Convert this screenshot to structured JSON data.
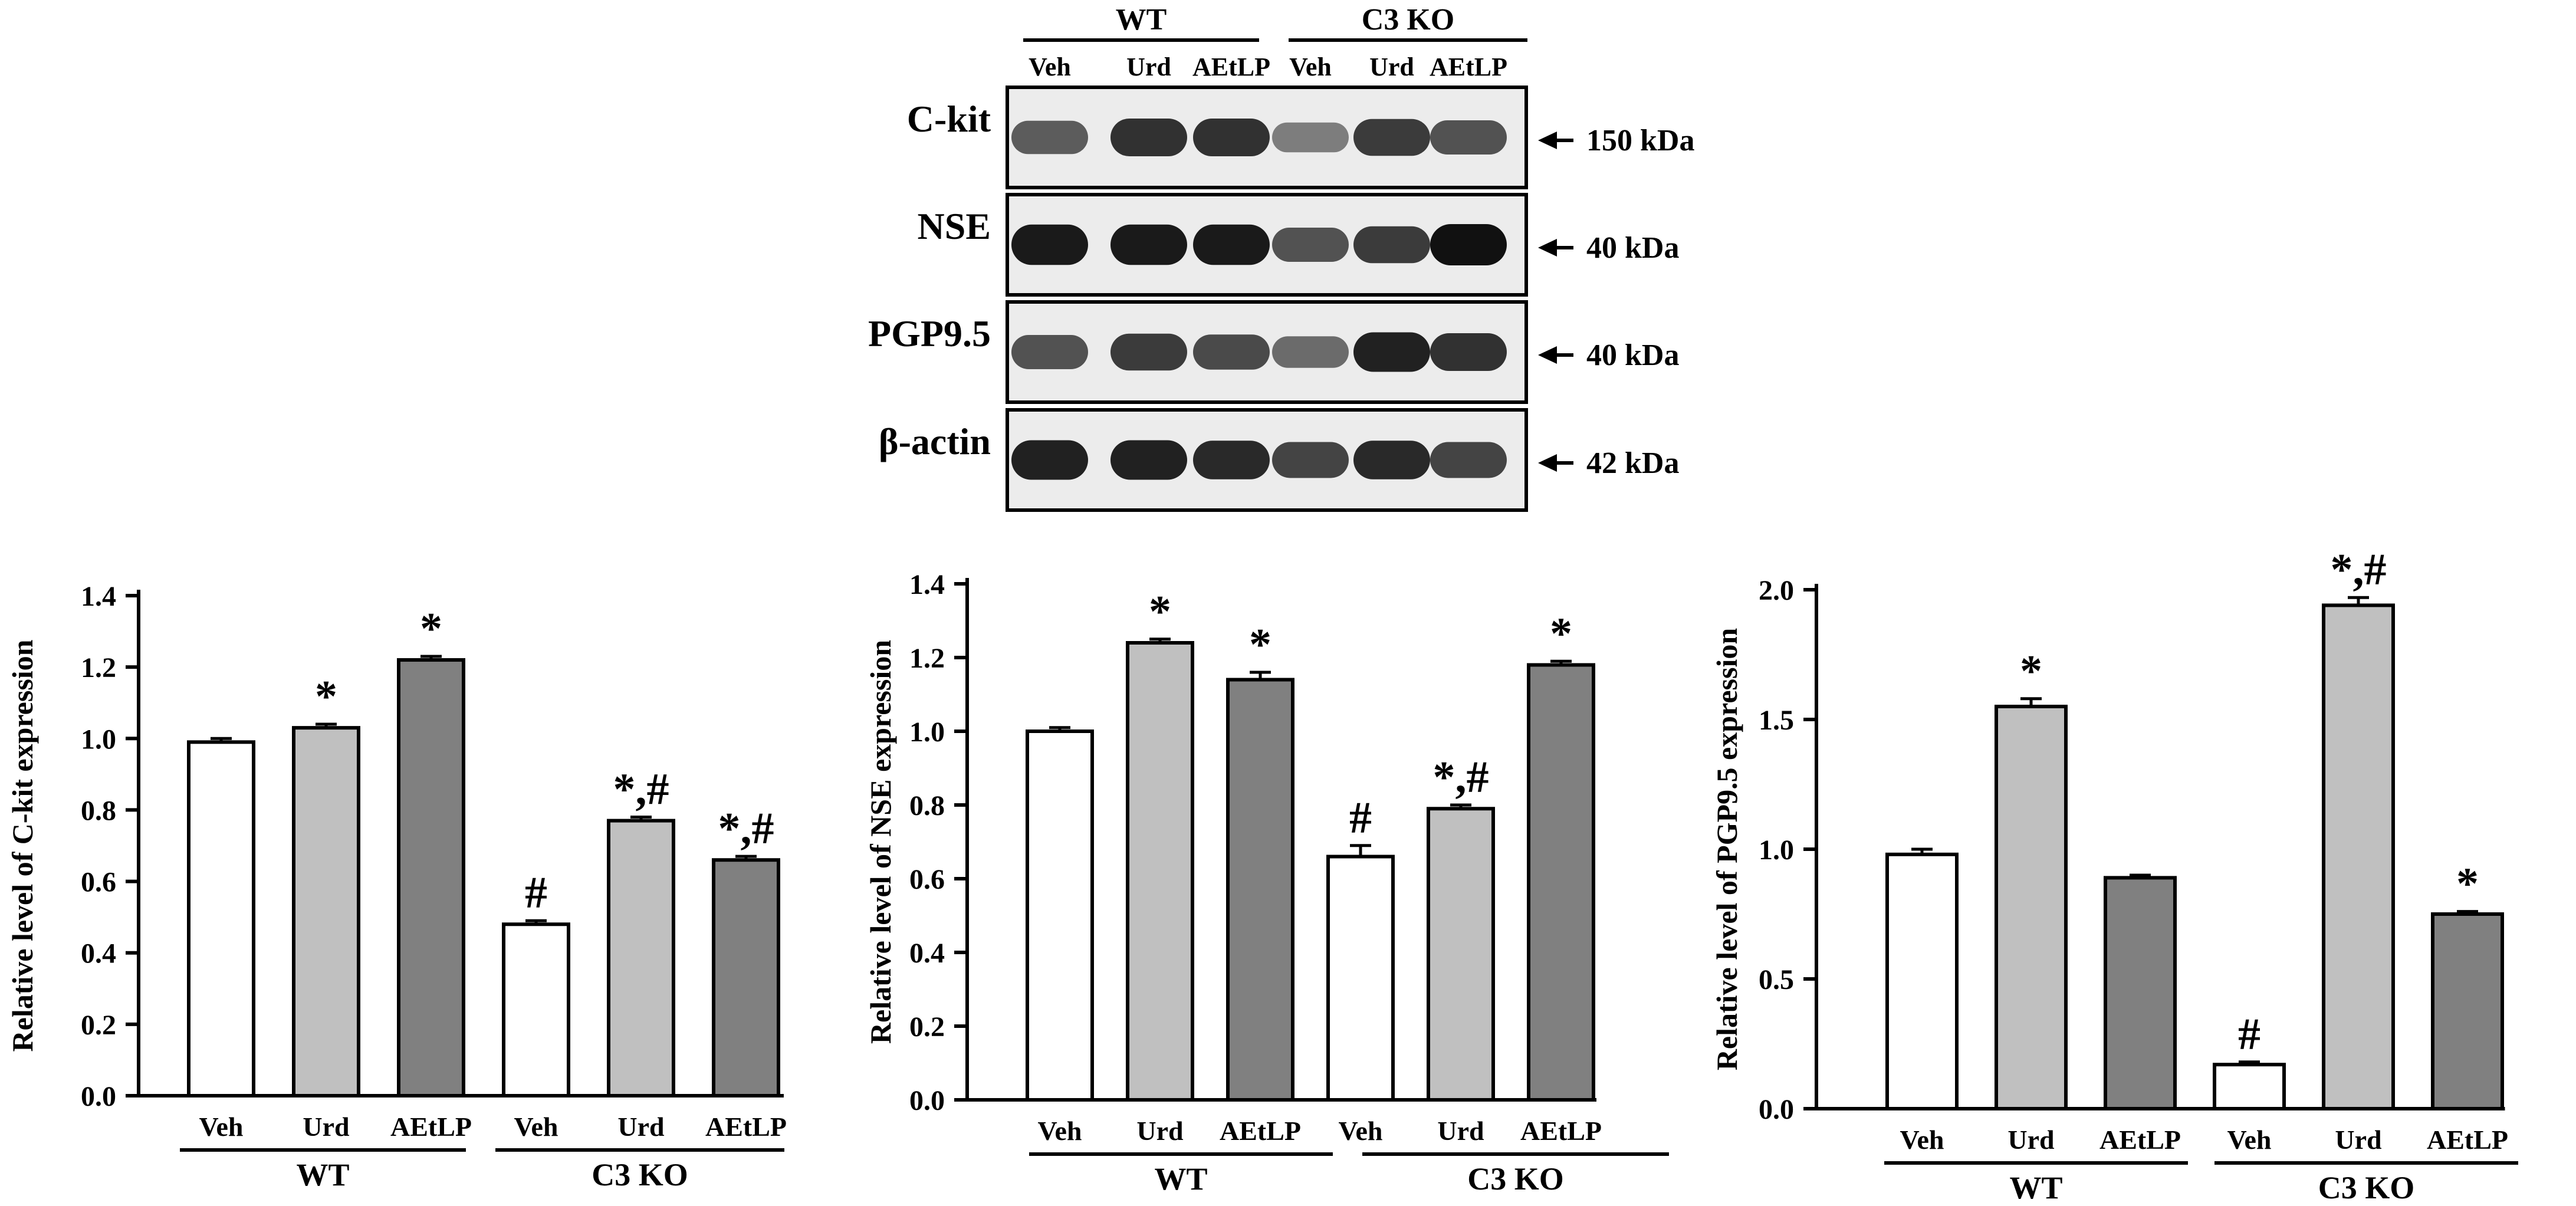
{
  "colors": {
    "white_bar": "#ffffff",
    "light_bar": "#c0c0c0",
    "dark_bar": "#808080",
    "blot_bg": "#ececec",
    "band": "#111111"
  },
  "western_blot": {
    "groups": [
      "WT",
      "C3 KO"
    ],
    "lanes": [
      "Veh",
      "Urd",
      "AEtLP",
      "Veh",
      "Urd",
      "AEtLP"
    ],
    "rows": [
      {
        "label": "C-kit",
        "size": "150 kDa",
        "intensity": [
          0.55,
          0.8,
          0.8,
          0.35,
          0.75,
          0.6
        ]
      },
      {
        "label": "NSE",
        "size": "40 kDa",
        "intensity": [
          0.95,
          0.95,
          0.95,
          0.6,
          0.75,
          1.0
        ]
      },
      {
        "label": "PGP9.5",
        "size": "40 kDa",
        "intensity": [
          0.6,
          0.75,
          0.65,
          0.45,
          0.9,
          0.8
        ]
      },
      {
        "label": "β-actin",
        "size": "42 kDa",
        "intensity": [
          0.9,
          0.9,
          0.85,
          0.7,
          0.85,
          0.7
        ]
      }
    ]
  },
  "chart_data": [
    {
      "type": "bar",
      "ylabel": "Relative level of C-kit expression",
      "ylim": [
        0,
        1.4
      ],
      "yticks": [
        "0.0",
        "0.2",
        "0.4",
        "0.6",
        "0.8",
        "1.0",
        "1.2",
        "1.4"
      ],
      "categories": [
        "Veh",
        "Urd",
        "AEtLP",
        "Veh",
        "Urd",
        "AEtLP"
      ],
      "groups": [
        "WT",
        "C3 KO"
      ],
      "values": [
        0.99,
        1.03,
        1.22,
        0.48,
        0.77,
        0.66
      ],
      "errors": [
        0.01,
        0.01,
        0.01,
        0.01,
        0.01,
        0.01
      ],
      "annotations": [
        "",
        "*",
        "*",
        "#",
        "*,#",
        "*,#"
      ]
    },
    {
      "type": "bar",
      "ylabel": "Relative level of NSE expression",
      "ylim": [
        0,
        1.4
      ],
      "yticks": [
        "0.0",
        "0.2",
        "0.4",
        "0.6",
        "0.8",
        "1.0",
        "1.2",
        "1.4"
      ],
      "categories": [
        "Veh",
        "Urd",
        "AEtLP",
        "Veh",
        "Urd",
        "AEtLP"
      ],
      "groups": [
        "WT",
        "C3 KO"
      ],
      "values": [
        1.0,
        1.24,
        1.14,
        0.66,
        0.79,
        1.18
      ],
      "errors": [
        0.01,
        0.01,
        0.02,
        0.03,
        0.01,
        0.01
      ],
      "annotations": [
        "",
        "*",
        "*",
        "#",
        "*,#",
        "*"
      ]
    },
    {
      "type": "bar",
      "ylabel": "Relative level of PGP9.5 expression",
      "ylim": [
        0,
        2.0
      ],
      "yticks": [
        "0.0",
        "0.5",
        "1.0",
        "1.5",
        "2.0"
      ],
      "categories": [
        "Veh",
        "Urd",
        "AEtLP",
        "Veh",
        "Urd",
        "AEtLP"
      ],
      "groups": [
        "WT",
        "C3 KO"
      ],
      "values": [
        0.98,
        1.55,
        0.89,
        0.17,
        1.94,
        0.75
      ],
      "errors": [
        0.02,
        0.03,
        0.01,
        0.01,
        0.03,
        0.01
      ],
      "annotations": [
        "",
        "*",
        "",
        "#",
        "*,#",
        "*"
      ]
    }
  ]
}
